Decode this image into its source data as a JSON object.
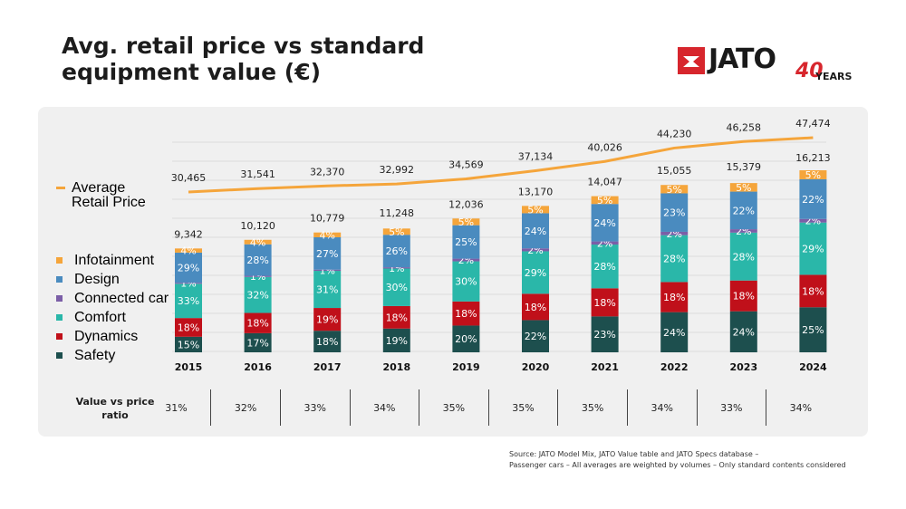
{
  "title_lines": [
    "Avg. retail price vs standard",
    "equipment value (€)"
  ],
  "logo": {
    "word": "JATO",
    "number": "40",
    "years": "YEARS"
  },
  "source": [
    "Source: JATO Model Mix, JATO Value table and JATO Specs database –",
    "Passenger cars – All averages are weighted by volumes – Only standard contents considered"
  ],
  "legend": {
    "average_retail_price": "Average Retail Price",
    "items": [
      {
        "name": "Infotainment",
        "color": "#f5a53b"
      },
      {
        "name": "Design",
        "color": "#4a8bbf"
      },
      {
        "name": "Connected car",
        "color": "#7b5ea7"
      },
      {
        "name": "Comfort",
        "color": "#2ab7a9"
      },
      {
        "name": "Dynamics",
        "color": "#c0101a"
      },
      {
        "name": "Safety",
        "color": "#1d4f4e"
      }
    ]
  },
  "ratio": {
    "header": "Value vs price ratio",
    "values": [
      "31%",
      "32%",
      "33%",
      "34%",
      "35%",
      "35%",
      "35%",
      "34%",
      "33%",
      "34%"
    ]
  },
  "chart_data": {
    "type": "bar",
    "categories": [
      "2015",
      "2016",
      "2017",
      "2018",
      "2019",
      "2020",
      "2021",
      "2022",
      "2023",
      "2024"
    ],
    "equipment_value_totals": [
      9342,
      10120,
      10779,
      11248,
      12036,
      13170,
      14047,
      15055,
      15379,
      16213
    ],
    "equipment_value_total_labels": [
      "9,342",
      "10,120",
      "10,779",
      "11,248",
      "12,036",
      "13,170",
      "14,047",
      "15,055",
      "15,379",
      "16,213"
    ],
    "series": [
      {
        "name": "Safety",
        "color": "#1d4f4e",
        "values": [
          15,
          17,
          18,
          19,
          20,
          22,
          23,
          24,
          24,
          25
        ]
      },
      {
        "name": "Dynamics",
        "color": "#c0101a",
        "values": [
          18,
          18,
          19,
          18,
          18,
          18,
          18,
          18,
          18,
          18
        ]
      },
      {
        "name": "Comfort",
        "color": "#2ab7a9",
        "values": [
          33,
          32,
          31,
          30,
          30,
          29,
          28,
          28,
          28,
          29
        ]
      },
      {
        "name": "Connected car",
        "color": "#7b5ea7",
        "values": [
          1,
          1,
          1,
          1,
          2,
          2,
          2,
          2,
          2,
          2
        ]
      },
      {
        "name": "Design",
        "color": "#4a8bbf",
        "values": [
          29,
          28,
          27,
          26,
          25,
          24,
          24,
          23,
          22,
          22
        ]
      },
      {
        "name": "Infotainment",
        "color": "#f5a53b",
        "values": [
          4,
          4,
          4,
          5,
          5,
          5,
          5,
          5,
          5,
          5
        ]
      }
    ],
    "line": {
      "name": "Average Retail Price",
      "color": "#f5a53b",
      "values": [
        30465,
        31541,
        32370,
        32992,
        34569,
        37134,
        40026,
        44230,
        46258,
        47474
      ],
      "labels": [
        "30,465",
        "31,541",
        "32,370",
        "32,992",
        "34,569",
        "37,134",
        "40,026",
        "44,230",
        "46,258",
        "47,474"
      ]
    },
    "grid": true,
    "legend_position": "left"
  }
}
